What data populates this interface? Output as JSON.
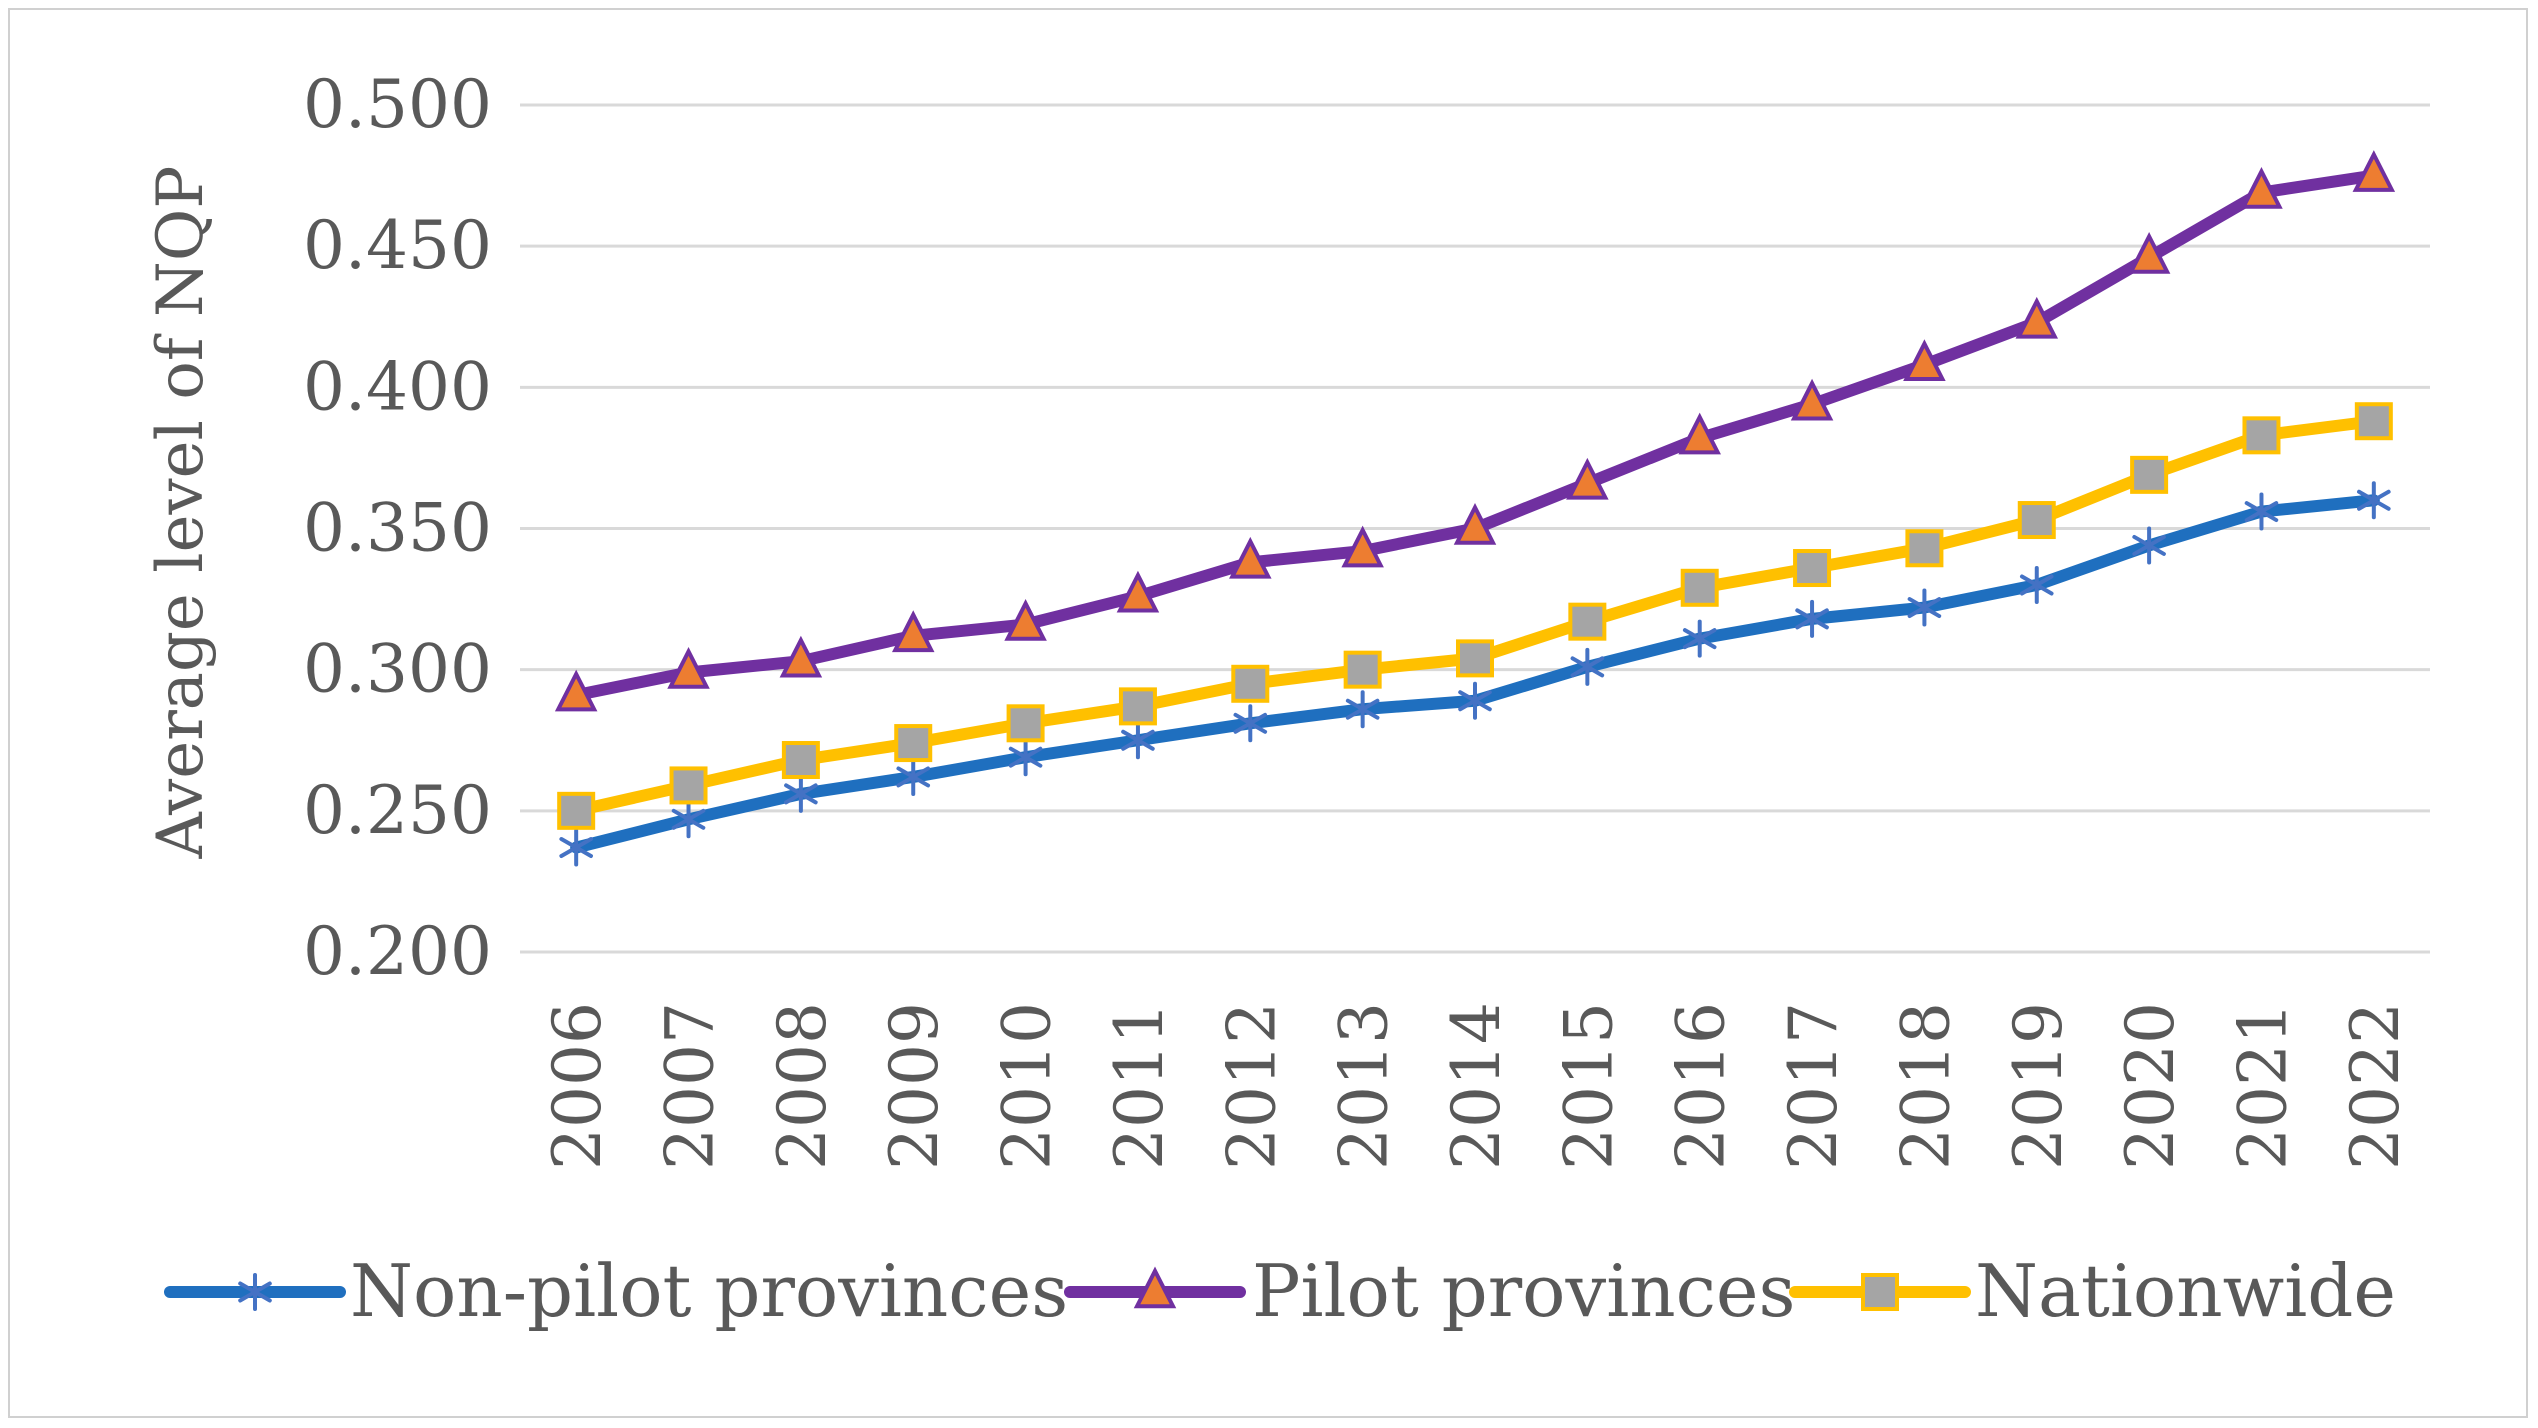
{
  "chart_data": {
    "type": "line",
    "title": "",
    "xlabel": "",
    "ylabel": "Average level of NQP",
    "ylim": [
      0.2,
      0.5
    ],
    "ytick_step": 0.05,
    "ytick_labels": [
      "0.200",
      "0.250",
      "0.300",
      "0.350",
      "0.400",
      "0.450",
      "0.500"
    ],
    "grid": true,
    "legend_position": "bottom",
    "x": [
      "2006",
      "2007",
      "2008",
      "2009",
      "2010",
      "2011",
      "2012",
      "2013",
      "2014",
      "2015",
      "2016",
      "2017",
      "2018",
      "2019",
      "2020",
      "2021",
      "2022"
    ],
    "series": [
      {
        "name": "Non-pilot provinces",
        "color": "#1F6FBF",
        "marker": "asterisk",
        "marker_color": "#4472C4",
        "values": [
          0.237,
          0.247,
          0.256,
          0.262,
          0.269,
          0.275,
          0.281,
          0.286,
          0.289,
          0.301,
          0.311,
          0.318,
          0.322,
          0.33,
          0.344,
          0.356,
          0.36
        ]
      },
      {
        "name": "Pilot provinces",
        "color": "#7030A0",
        "marker": "triangle",
        "marker_color": "#ED7D31",
        "values": [
          0.291,
          0.299,
          0.303,
          0.312,
          0.316,
          0.326,
          0.338,
          0.342,
          0.35,
          0.366,
          0.382,
          0.394,
          0.408,
          0.423,
          0.446,
          0.469,
          0.475
        ]
      },
      {
        "name": "Nationwide",
        "color": "#FFC000",
        "marker": "square",
        "marker_color": "#A5A5A5",
        "values": [
          0.25,
          0.259,
          0.268,
          0.274,
          0.281,
          0.287,
          0.295,
          0.3,
          0.304,
          0.317,
          0.329,
          0.336,
          0.343,
          0.353,
          0.369,
          0.383,
          0.388
        ]
      }
    ]
  }
}
